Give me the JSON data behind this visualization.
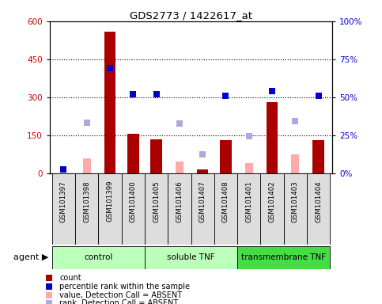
{
  "title": "GDS2773 / 1422617_at",
  "samples": [
    "GSM101397",
    "GSM101398",
    "GSM101399",
    "GSM101400",
    "GSM101405",
    "GSM101406",
    "GSM101407",
    "GSM101408",
    "GSM101401",
    "GSM101402",
    "GSM101403",
    "GSM101404"
  ],
  "count_bars": [
    null,
    null,
    560,
    155,
    135,
    null,
    15,
    130,
    null,
    280,
    null,
    130
  ],
  "value_absent_bars": [
    null,
    60,
    null,
    null,
    null,
    45,
    null,
    null,
    40,
    null,
    75,
    null
  ],
  "rank_absent_squares_left": [
    null,
    200,
    null,
    null,
    null,
    195,
    75,
    null,
    145,
    null,
    205,
    null
  ],
  "percentile_rank_squares_right": [
    2.5,
    null,
    69,
    52,
    52,
    null,
    null,
    51,
    null,
    54,
    null,
    51
  ],
  "ylim_left": [
    0,
    600
  ],
  "ylim_right": [
    0,
    100
  ],
  "yticks_left": [
    0,
    150,
    300,
    450,
    600
  ],
  "yticks_right": [
    0,
    25,
    50,
    75,
    100
  ],
  "ytick_labels_left": [
    "0",
    "150",
    "300",
    "450",
    "600"
  ],
  "ytick_labels_right": [
    "0%",
    "25%",
    "50%",
    "75%",
    "100%"
  ],
  "bar_color": "#aa0000",
  "absent_bar_color": "#ffaaaa",
  "rank_absent_color": "#aaaadd",
  "percentile_color": "#0000cc",
  "group_spans": [
    [
      0,
      4,
      "control",
      "#bbffbb"
    ],
    [
      4,
      8,
      "soluble TNF",
      "#bbffbb"
    ],
    [
      8,
      12,
      "transmembrane TNF",
      "#44dd44"
    ]
  ],
  "xlabel_color_left": "#cc0000",
  "xlabel_color_right": "#0000cc",
  "legend_items": [
    [
      "#aa0000",
      "s",
      "count"
    ],
    [
      "#0000cc",
      "s",
      "percentile rank within the sample"
    ],
    [
      "#ffaaaa",
      "s",
      "value, Detection Call = ABSENT"
    ],
    [
      "#aaaadd",
      "s",
      "rank, Detection Call = ABSENT"
    ]
  ]
}
